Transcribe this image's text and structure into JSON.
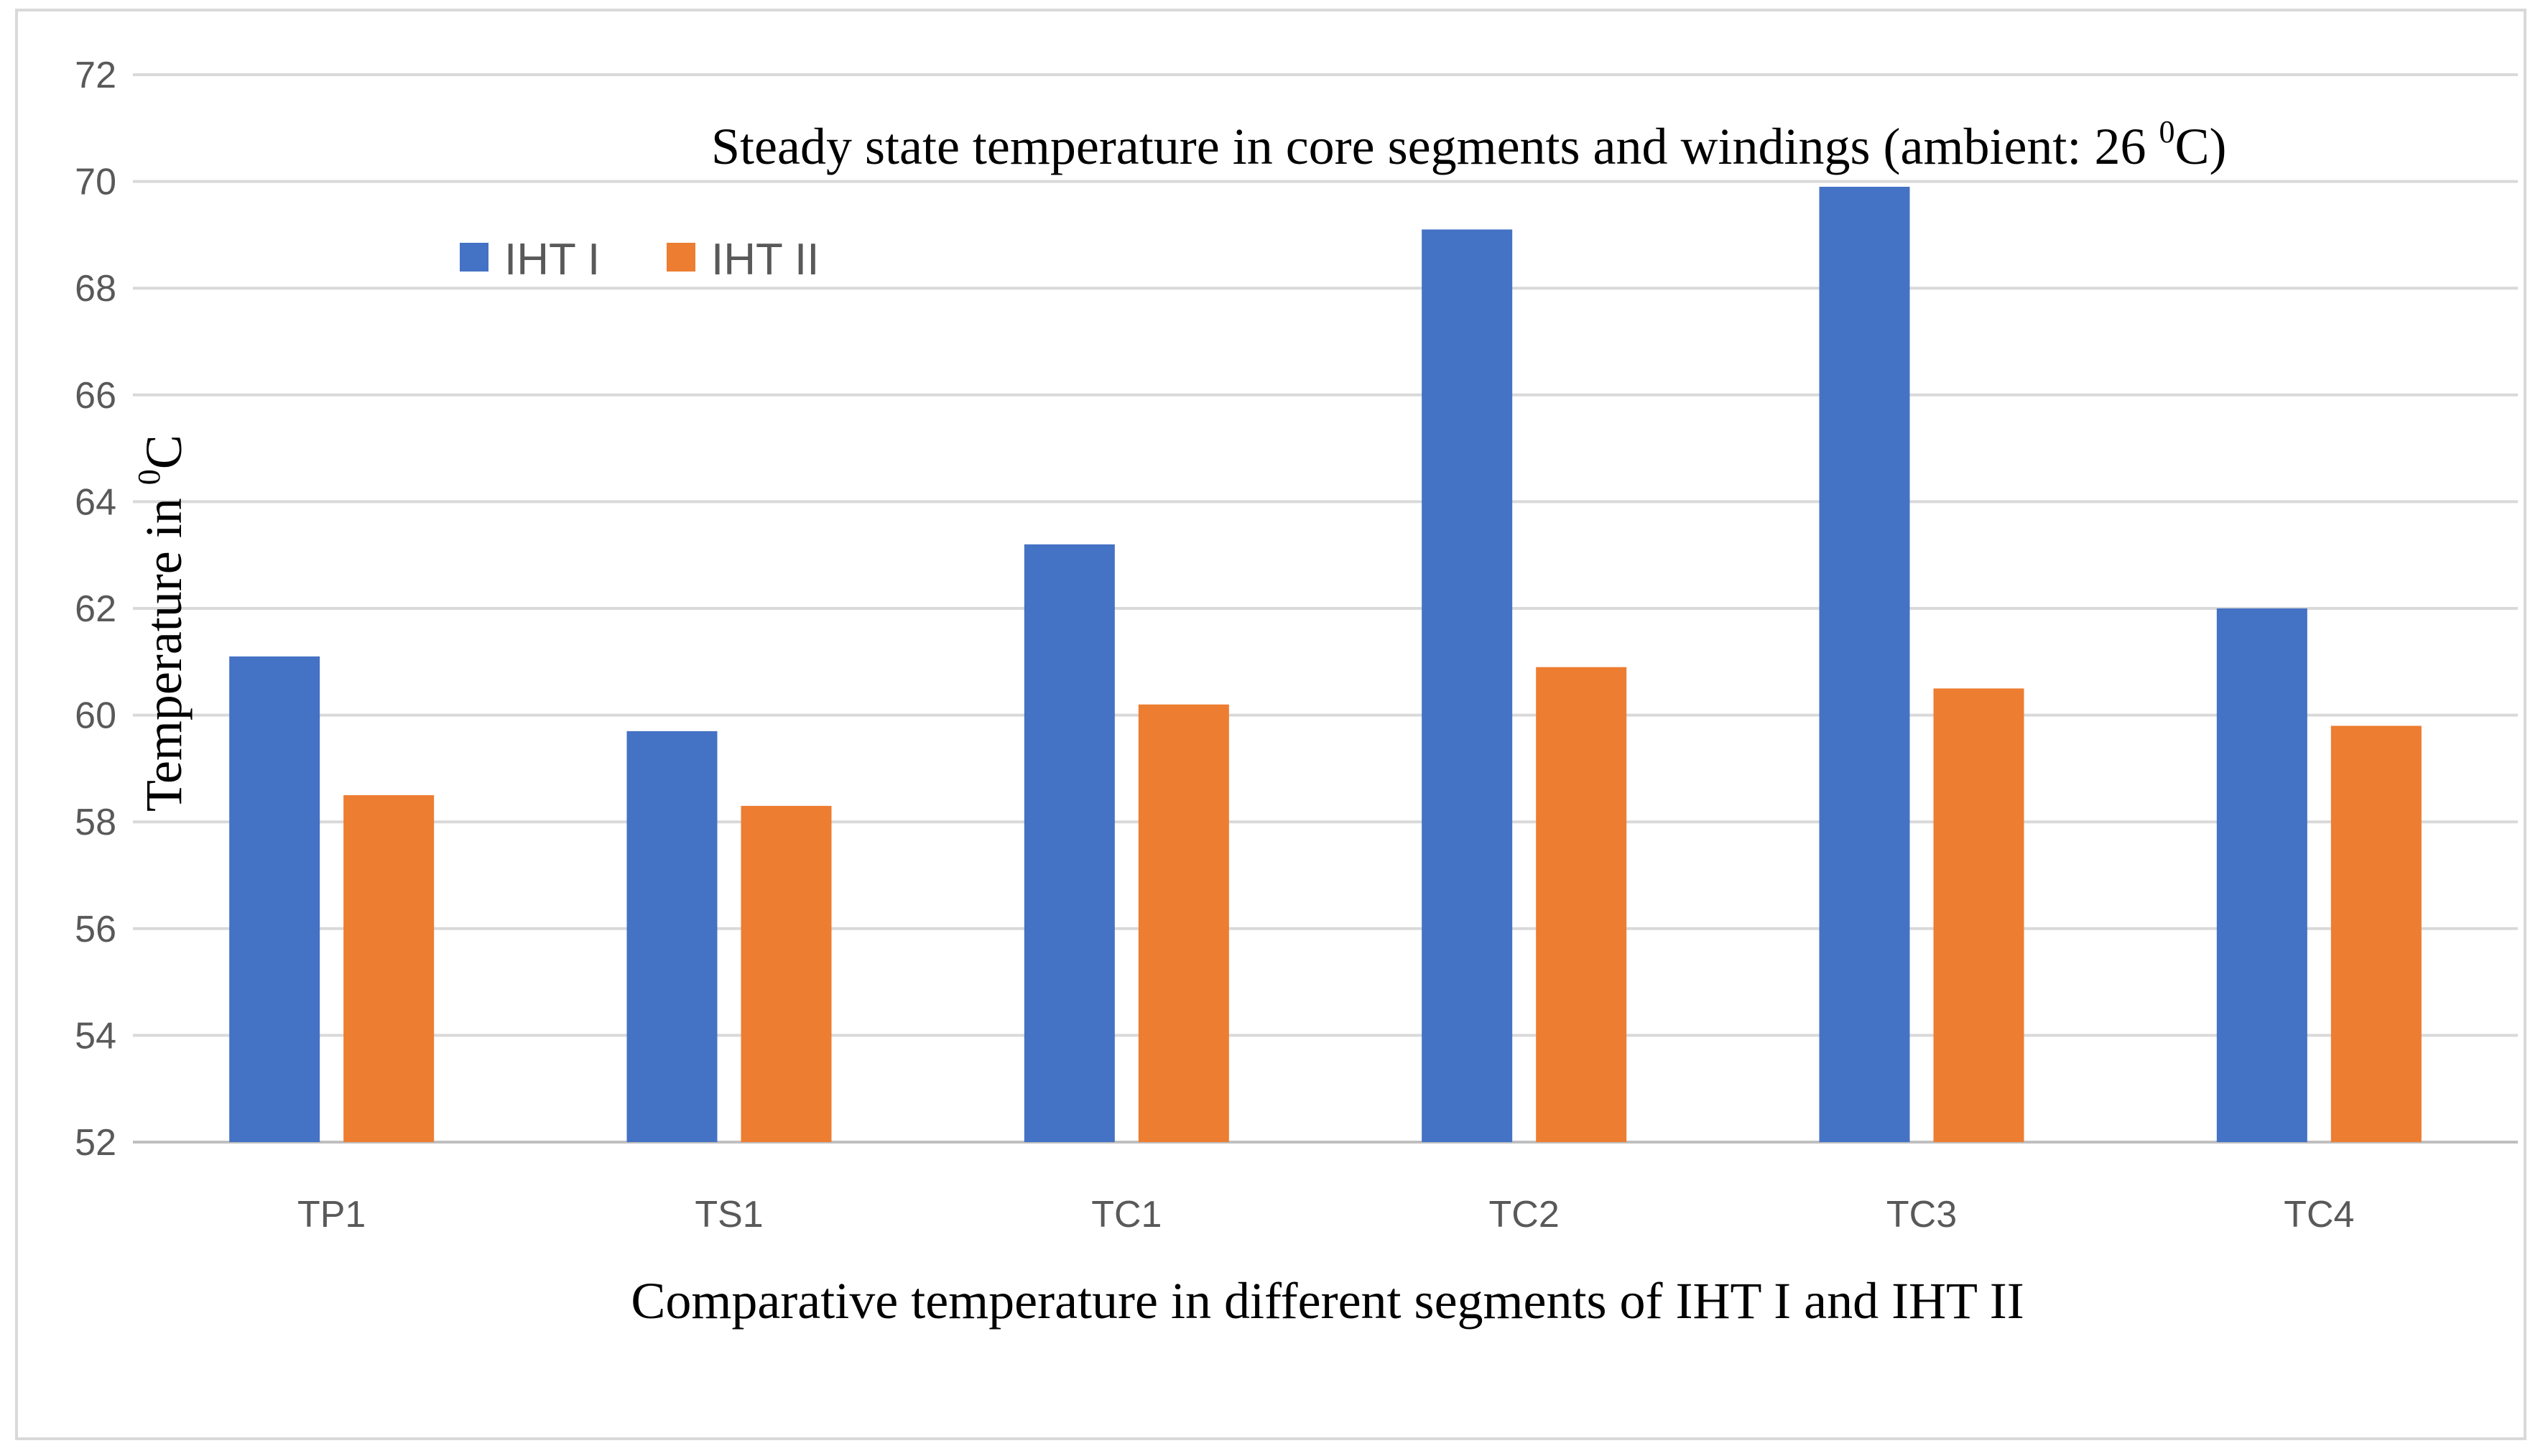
{
  "chart_data": {
    "type": "bar",
    "title_text": "Steady state temperature in core segments and windings (ambient: 26 ",
    "title_sup": "0",
    "title_tail": "C)",
    "xlabel": "Comparative temperature in different segments of IHT I and IHT II",
    "ylabel_text": "Temperature in  ",
    "ylabel_sup": "0",
    "ylabel_tail": "C",
    "categories": [
      "TP1",
      "TS1",
      "TC1",
      "TC2",
      "TC3",
      "TC4"
    ],
    "ylim": [
      52,
      72
    ],
    "yticks": [
      52,
      54,
      56,
      58,
      60,
      62,
      64,
      66,
      68,
      70,
      72
    ],
    "grid": true,
    "legend_position": "top-left",
    "series": [
      {
        "name": "IHT I",
        "color": "#4472c4",
        "values": [
          61.1,
          59.7,
          63.2,
          69.1,
          69.9,
          62.0
        ]
      },
      {
        "name": "IHT II",
        "color": "#ed7d31",
        "values": [
          58.5,
          58.3,
          60.2,
          60.9,
          60.5,
          59.8
        ]
      }
    ]
  }
}
